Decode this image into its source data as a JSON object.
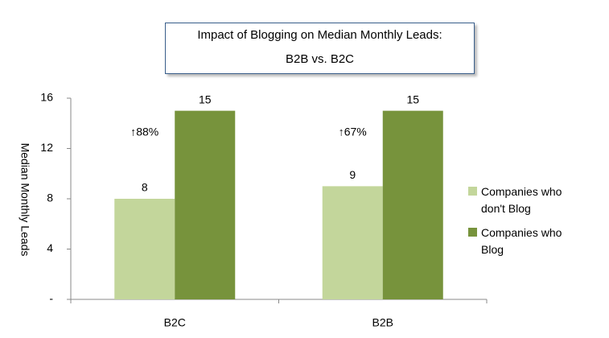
{
  "chart_data": {
    "type": "bar",
    "title": [
      "Impact of Blogging on Median Monthly Leads:",
      "B2B vs. B2C"
    ],
    "y_label": "Median Monthly Leads",
    "categories": [
      "B2C",
      "B2B"
    ],
    "series": [
      {
        "name": "Companies who don't Blog",
        "color": "#c3d69b",
        "values": [
          8,
          9
        ]
      },
      {
        "name": "Companies who Blog",
        "color": "#77933c",
        "values": [
          15,
          15
        ]
      }
    ],
    "annotations": [
      "↑88%",
      "↑67%"
    ],
    "ylim": [
      0,
      16
    ],
    "yticks": [
      {
        "value": 0,
        "label": "-"
      },
      4,
      8,
      12,
      16
    ]
  }
}
